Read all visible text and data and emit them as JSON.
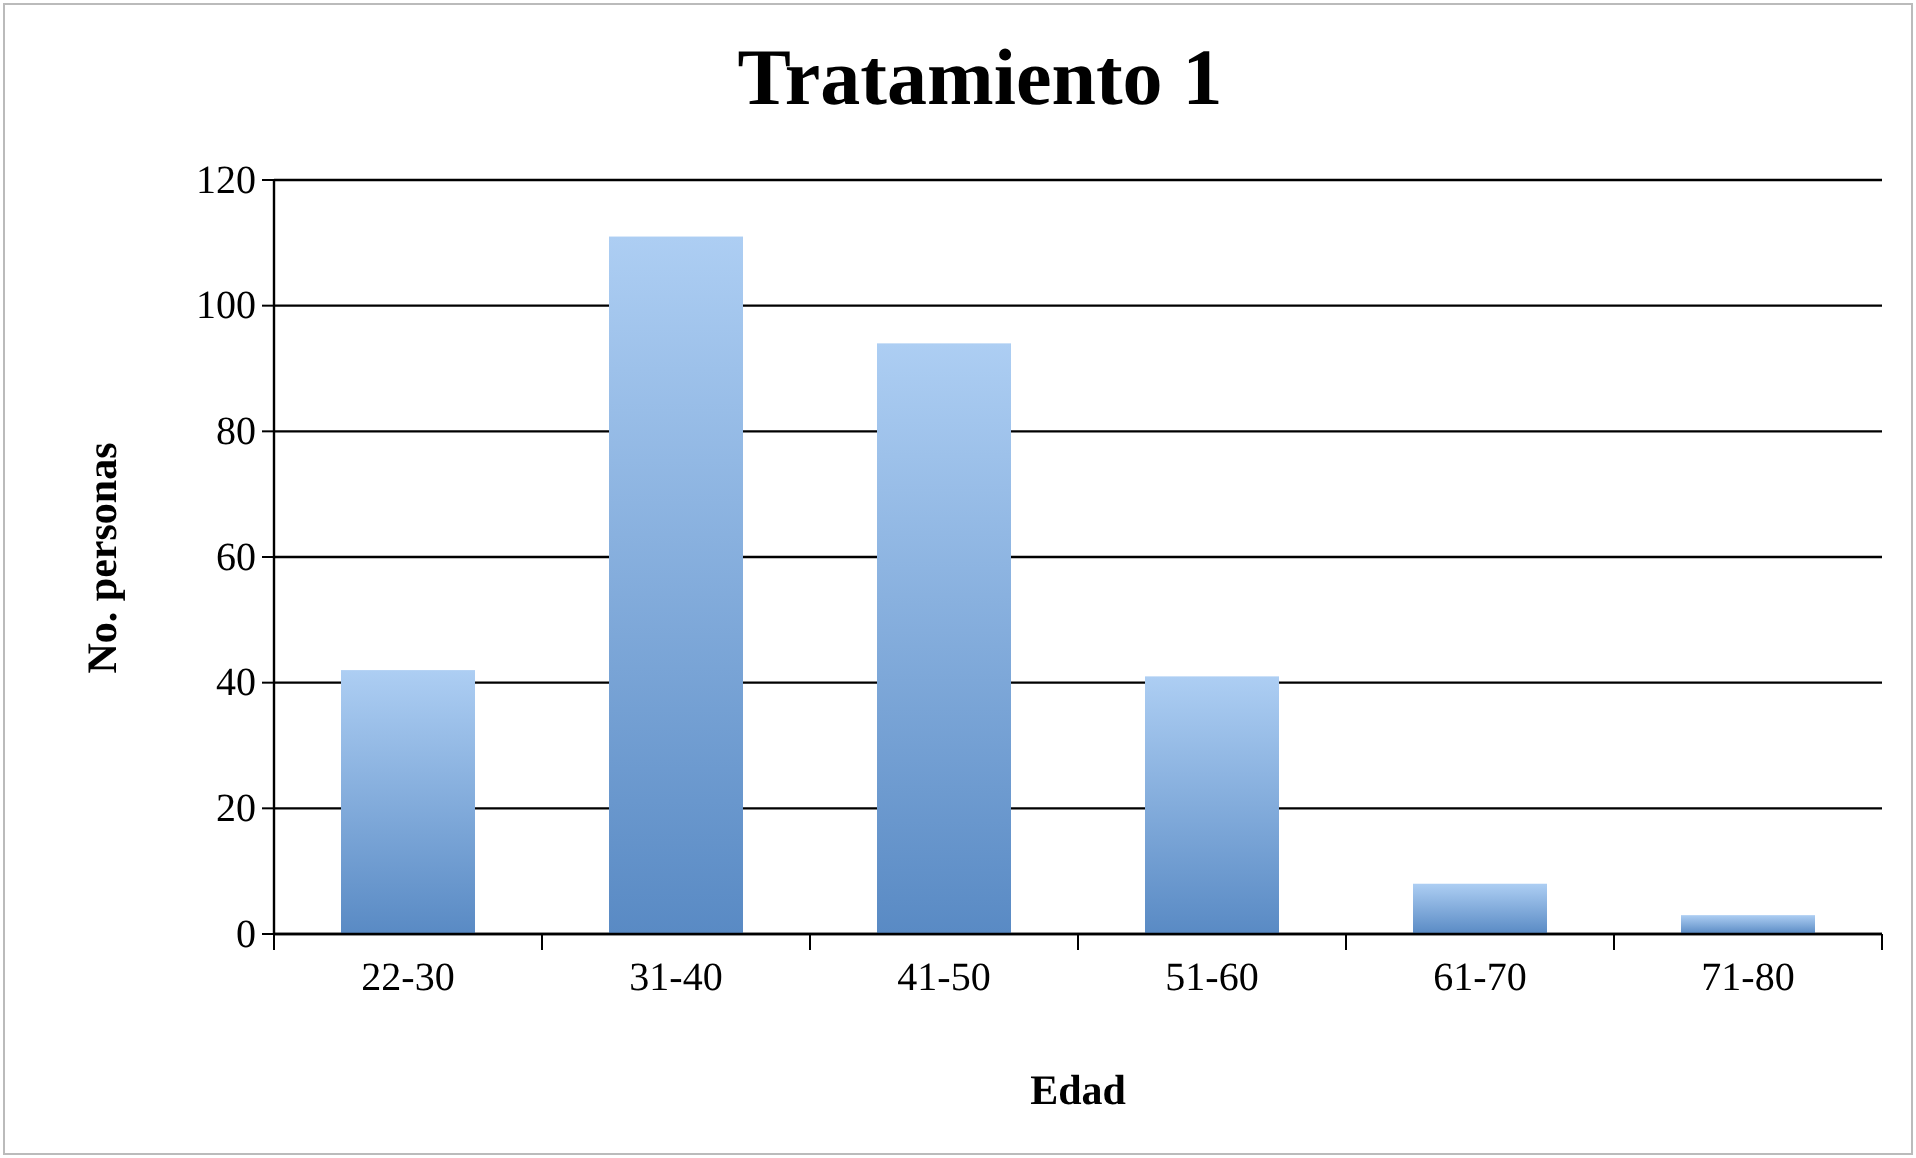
{
  "chart_data": {
    "type": "bar",
    "title": "Tratamiento 1",
    "xlabel": "Edad",
    "ylabel": "No. personas",
    "categories": [
      "22-30",
      "31-40",
      "41-50",
      "51-60",
      "61-70",
      "71-80"
    ],
    "values": [
      42,
      111,
      94,
      41,
      8,
      3
    ],
    "color": "#6aa5ea",
    "ylim": [
      0,
      120
    ],
    "yticks": [
      0,
      20,
      40,
      60,
      80,
      100,
      120
    ],
    "grid": "y"
  }
}
